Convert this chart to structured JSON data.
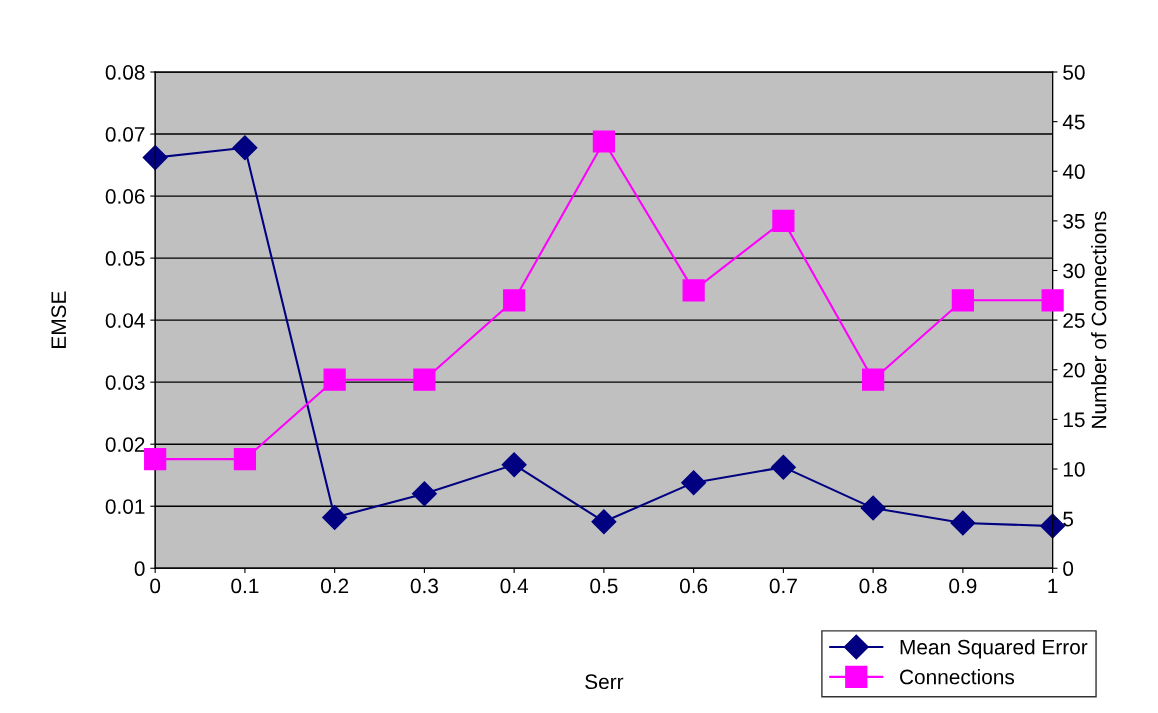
{
  "chart_data": {
    "type": "line",
    "xlabel": "Serr",
    "ylabel": "EMSE",
    "y2label": "Number of Connections",
    "x": [
      0,
      0.1,
      0.2,
      0.3,
      0.4,
      0.5,
      0.6,
      0.7,
      0.8,
      0.9,
      1
    ],
    "series": [
      {
        "name": "Mean Squared Error",
        "color": "#000080",
        "marker": "diamond",
        "values": [
          0.0662,
          0.0678,
          0.0082,
          0.012,
          0.0167,
          0.0075,
          0.0138,
          0.0163,
          0.0097,
          0.0073,
          0.0068
        ]
      },
      {
        "name": "Connections",
        "color": "#ff00ff",
        "marker": "square",
        "axis": "y2",
        "values": [
          11,
          11,
          19,
          19,
          27,
          43,
          28,
          35,
          19,
          27,
          27
        ]
      }
    ],
    "xlim": [
      0,
      1
    ],
    "xticks": [
      0,
      0.1,
      0.2,
      0.3,
      0.4,
      0.5,
      0.6,
      0.7,
      0.8,
      0.9,
      1
    ],
    "ylim": [
      0,
      0.08
    ],
    "yticks": [
      0,
      0.01,
      0.02,
      0.03,
      0.04,
      0.05,
      0.06,
      0.07,
      0.08
    ],
    "y2lim": [
      0,
      50
    ],
    "y2ticks": [
      0,
      5,
      10,
      15,
      20,
      25,
      30,
      35,
      40,
      45,
      50
    ],
    "grid": "y",
    "legend": "bottom right",
    "line_style": "solid"
  }
}
